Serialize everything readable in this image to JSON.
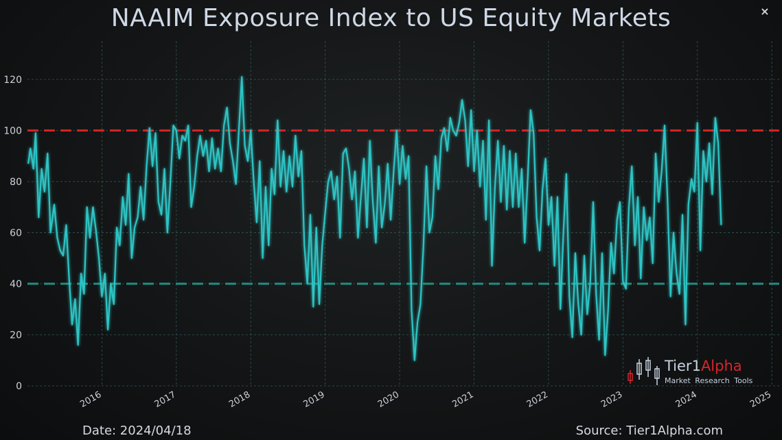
{
  "header": {
    "title": "NAAIM Exposure Index to US Equity Markets",
    "close_symbol": "×"
  },
  "footer": {
    "date": "Date: 2024/04/18",
    "source": "Source: Tier1Alpha.com"
  },
  "logo": {
    "brand": "Tier1",
    "brand_accent": "Alpha",
    "tagline": "Market Research Tools"
  },
  "colors": {
    "line": "#2ec4c4",
    "upper_ref": "#d42424",
    "lower_ref": "#1f8f85",
    "grid": "#2c5a58",
    "axis_text": "#cdd3da"
  },
  "chart_data": {
    "type": "line",
    "title": "NAAIM Exposure Index to US Equity Markets",
    "xlabel": "",
    "ylabel": "",
    "xlim": [
      2015.0,
      2025.1
    ],
    "ylim": [
      0,
      135
    ],
    "grid": true,
    "yticks": [
      0,
      20,
      40,
      60,
      80,
      100,
      120
    ],
    "xticks": [
      "2016",
      "2017",
      "2018",
      "2019",
      "2020",
      "2021",
      "2022",
      "2023",
      "2024",
      "2025"
    ],
    "reference_lines": [
      {
        "y": 100,
        "style": "dashed",
        "color": "#d42424"
      },
      {
        "y": 40,
        "style": "dashed",
        "color": "#1f8f85"
      }
    ],
    "series": [
      {
        "points": [
          [
            2015.01,
            87
          ],
          [
            2015.04,
            93
          ],
          [
            2015.08,
            85
          ],
          [
            2015.11,
            99
          ],
          [
            2015.15,
            66
          ],
          [
            2015.19,
            85
          ],
          [
            2015.23,
            76
          ],
          [
            2015.27,
            91
          ],
          [
            2015.31,
            60
          ],
          [
            2015.36,
            71
          ],
          [
            2015.4,
            58
          ],
          [
            2015.44,
            53
          ],
          [
            2015.48,
            51
          ],
          [
            2015.52,
            63
          ],
          [
            2015.56,
            42
          ],
          [
            2015.6,
            24
          ],
          [
            2015.64,
            34
          ],
          [
            2015.68,
            16
          ],
          [
            2015.72,
            44
          ],
          [
            2015.76,
            36
          ],
          [
            2015.8,
            70
          ],
          [
            2015.84,
            58
          ],
          [
            2015.88,
            70
          ],
          [
            2015.92,
            61
          ],
          [
            2015.96,
            50
          ],
          [
            2016.0,
            35
          ],
          [
            2016.04,
            44
          ],
          [
            2016.08,
            22
          ],
          [
            2016.12,
            40
          ],
          [
            2016.16,
            32
          ],
          [
            2016.2,
            62
          ],
          [
            2016.24,
            55
          ],
          [
            2016.28,
            74
          ],
          [
            2016.32,
            63
          ],
          [
            2016.36,
            83
          ],
          [
            2016.4,
            50
          ],
          [
            2016.44,
            62
          ],
          [
            2016.48,
            66
          ],
          [
            2016.52,
            78
          ],
          [
            2016.56,
            65
          ],
          [
            2016.6,
            86
          ],
          [
            2016.64,
            101
          ],
          [
            2016.68,
            86
          ],
          [
            2016.72,
            99
          ],
          [
            2016.76,
            72
          ],
          [
            2016.8,
            67
          ],
          [
            2016.84,
            85
          ],
          [
            2016.88,
            60
          ],
          [
            2016.92,
            80
          ],
          [
            2016.96,
            102
          ],
          [
            2017.0,
            100
          ],
          [
            2017.04,
            89
          ],
          [
            2017.08,
            98
          ],
          [
            2017.12,
            96
          ],
          [
            2017.16,
            102
          ],
          [
            2017.2,
            70
          ],
          [
            2017.24,
            78
          ],
          [
            2017.28,
            90
          ],
          [
            2017.32,
            98
          ],
          [
            2017.36,
            90
          ],
          [
            2017.4,
            96
          ],
          [
            2017.44,
            84
          ],
          [
            2017.48,
            97
          ],
          [
            2017.52,
            85
          ],
          [
            2017.56,
            93
          ],
          [
            2017.6,
            84
          ],
          [
            2017.64,
            102
          ],
          [
            2017.68,
            109
          ],
          [
            2017.72,
            95
          ],
          [
            2017.76,
            88
          ],
          [
            2017.8,
            79
          ],
          [
            2017.84,
            100
          ],
          [
            2017.88,
            121
          ],
          [
            2017.92,
            94
          ],
          [
            2017.96,
            88
          ],
          [
            2018.0,
            100
          ],
          [
            2018.04,
            80
          ],
          [
            2018.08,
            64
          ],
          [
            2018.12,
            88
          ],
          [
            2018.16,
            50
          ],
          [
            2018.2,
            78
          ],
          [
            2018.24,
            55
          ],
          [
            2018.28,
            85
          ],
          [
            2018.32,
            75
          ],
          [
            2018.36,
            104
          ],
          [
            2018.4,
            78
          ],
          [
            2018.44,
            92
          ],
          [
            2018.48,
            76
          ],
          [
            2018.52,
            90
          ],
          [
            2018.56,
            78
          ],
          [
            2018.6,
            98
          ],
          [
            2018.64,
            82
          ],
          [
            2018.68,
            92
          ],
          [
            2018.72,
            55
          ],
          [
            2018.76,
            40
          ],
          [
            2018.8,
            67
          ],
          [
            2018.84,
            31
          ],
          [
            2018.88,
            62
          ],
          [
            2018.92,
            32
          ],
          [
            2018.96,
            55
          ],
          [
            2019.0,
            68
          ],
          [
            2019.04,
            80
          ],
          [
            2019.08,
            84
          ],
          [
            2019.12,
            73
          ],
          [
            2019.16,
            82
          ],
          [
            2019.2,
            58
          ],
          [
            2019.24,
            91
          ],
          [
            2019.28,
            93
          ],
          [
            2019.32,
            85
          ],
          [
            2019.36,
            73
          ],
          [
            2019.4,
            84
          ],
          [
            2019.44,
            58
          ],
          [
            2019.48,
            74
          ],
          [
            2019.52,
            89
          ],
          [
            2019.56,
            62
          ],
          [
            2019.6,
            96
          ],
          [
            2019.64,
            72
          ],
          [
            2019.68,
            56
          ],
          [
            2019.72,
            86
          ],
          [
            2019.76,
            62
          ],
          [
            2019.8,
            71
          ],
          [
            2019.84,
            87
          ],
          [
            2019.88,
            65
          ],
          [
            2019.92,
            84
          ],
          [
            2019.96,
            100
          ],
          [
            2020.0,
            79
          ],
          [
            2020.04,
            94
          ],
          [
            2020.08,
            81
          ],
          [
            2020.12,
            90
          ],
          [
            2020.16,
            30
          ],
          [
            2020.2,
            10
          ],
          [
            2020.24,
            25
          ],
          [
            2020.28,
            32
          ],
          [
            2020.32,
            55
          ],
          [
            2020.36,
            86
          ],
          [
            2020.4,
            60
          ],
          [
            2020.44,
            66
          ],
          [
            2020.48,
            90
          ],
          [
            2020.52,
            77
          ],
          [
            2020.56,
            97
          ],
          [
            2020.6,
            101
          ],
          [
            2020.64,
            92
          ],
          [
            2020.68,
            105
          ],
          [
            2020.72,
            100
          ],
          [
            2020.76,
            98
          ],
          [
            2020.8,
            103
          ],
          [
            2020.84,
            112
          ],
          [
            2020.88,
            104
          ],
          [
            2020.92,
            86
          ],
          [
            2020.96,
            108
          ],
          [
            2021.0,
            84
          ],
          [
            2021.04,
            100
          ],
          [
            2021.08,
            78
          ],
          [
            2021.12,
            96
          ],
          [
            2021.16,
            65
          ],
          [
            2021.2,
            104
          ],
          [
            2021.24,
            47
          ],
          [
            2021.28,
            78
          ],
          [
            2021.32,
            96
          ],
          [
            2021.36,
            72
          ],
          [
            2021.4,
            94
          ],
          [
            2021.44,
            69
          ],
          [
            2021.48,
            92
          ],
          [
            2021.52,
            70
          ],
          [
            2021.56,
            91
          ],
          [
            2021.6,
            70
          ],
          [
            2021.64,
            85
          ],
          [
            2021.68,
            56
          ],
          [
            2021.72,
            81
          ],
          [
            2021.76,
            108
          ],
          [
            2021.8,
            99
          ],
          [
            2021.84,
            66
          ],
          [
            2021.88,
            53
          ],
          [
            2021.92,
            77
          ],
          [
            2021.96,
            89
          ],
          [
            2022.0,
            63
          ],
          [
            2022.04,
            74
          ],
          [
            2022.08,
            47
          ],
          [
            2022.12,
            74
          ],
          [
            2022.16,
            30
          ],
          [
            2022.2,
            60
          ],
          [
            2022.24,
            83
          ],
          [
            2022.28,
            35
          ],
          [
            2022.32,
            19
          ],
          [
            2022.36,
            52
          ],
          [
            2022.4,
            32
          ],
          [
            2022.44,
            20
          ],
          [
            2022.48,
            51
          ],
          [
            2022.52,
            28
          ],
          [
            2022.56,
            40
          ],
          [
            2022.6,
            72
          ],
          [
            2022.64,
            36
          ],
          [
            2022.68,
            18
          ],
          [
            2022.72,
            52
          ],
          [
            2022.76,
            12
          ],
          [
            2022.8,
            29
          ],
          [
            2022.84,
            56
          ],
          [
            2022.88,
            44
          ],
          [
            2022.92,
            65
          ],
          [
            2022.96,
            72
          ],
          [
            2023.0,
            41
          ],
          [
            2023.04,
            38
          ],
          [
            2023.08,
            70
          ],
          [
            2023.12,
            86
          ],
          [
            2023.16,
            55
          ],
          [
            2023.2,
            74
          ],
          [
            2023.24,
            42
          ],
          [
            2023.28,
            70
          ],
          [
            2023.32,
            57
          ],
          [
            2023.36,
            66
          ],
          [
            2023.4,
            48
          ],
          [
            2023.44,
            91
          ],
          [
            2023.48,
            72
          ],
          [
            2023.52,
            84
          ],
          [
            2023.56,
            102
          ],
          [
            2023.6,
            72
          ],
          [
            2023.64,
            35
          ],
          [
            2023.68,
            60
          ],
          [
            2023.72,
            44
          ],
          [
            2023.76,
            36
          ],
          [
            2023.8,
            67
          ],
          [
            2023.84,
            24
          ],
          [
            2023.88,
            71
          ],
          [
            2023.92,
            81
          ],
          [
            2023.96,
            76
          ],
          [
            2024.0,
            103
          ],
          [
            2024.04,
            53
          ],
          [
            2024.08,
            92
          ],
          [
            2024.12,
            80
          ],
          [
            2024.16,
            95
          ],
          [
            2024.2,
            75
          ],
          [
            2024.24,
            105
          ],
          [
            2024.28,
            95
          ],
          [
            2024.32,
            63
          ]
        ]
      }
    ]
  }
}
